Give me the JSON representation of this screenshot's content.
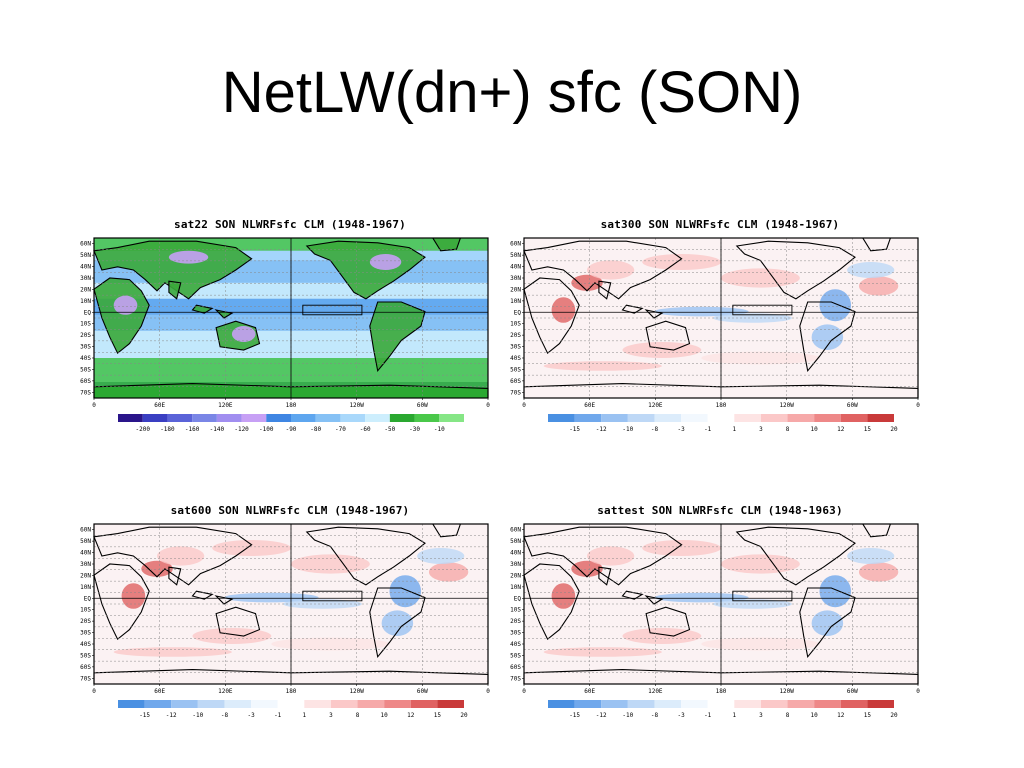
{
  "slide": {
    "title": "NetLW(dn+) sfc (SON)"
  },
  "common": {
    "lat_labels": [
      "60N",
      "50N",
      "40N",
      "30N",
      "20N",
      "10N",
      "EQ",
      "10S",
      "20S",
      "30S",
      "40S",
      "50S",
      "60S",
      "70S"
    ],
    "lon_labels": [
      "0",
      "60E",
      "120E",
      "180",
      "120W",
      "60W",
      "0"
    ]
  },
  "panels": [
    {
      "title": "sat22 SON NLWRFsfc CLM (1948-1967)",
      "palette": [
        "#2a158a",
        "#3a3fc2",
        "#5a63d8",
        "#7a86e6",
        "#a18ef0",
        "#c7a0f5",
        "#3f86e3",
        "#5ea6ef",
        "#86c1f5",
        "#a9d8fb",
        "#cdeefd",
        "#2aa830",
        "#4ac84a",
        "#86e686"
      ],
      "colorbar_labels": [
        "-200",
        "-180",
        "-160",
        "-140",
        "-120",
        "-100",
        "-90",
        "-80",
        "-70",
        "-60",
        "-50",
        "-30",
        "-10"
      ],
      "colors": {
        "ocean": "#86c1f5",
        "land": "#3aa83a",
        "polar": "#2aa830"
      }
    },
    {
      "title": "sat300 SON NLWRFsfc CLM (1948-1967)",
      "palette": [
        "#4a90e2",
        "#70a8ec",
        "#9ac2f2",
        "#bed8f6",
        "#dcecfb",
        "#f2f8fe",
        "#ffffff",
        "#fde4e4",
        "#fbc8c8",
        "#f6a9a9",
        "#ee8888",
        "#e06262",
        "#c93a3a"
      ],
      "colorbar_labels": [
        "-15",
        "-12",
        "-10",
        "-8",
        "-3",
        "-1",
        "1",
        "3",
        "8",
        "10",
        "12",
        "15",
        "20"
      ],
      "colors": {
        "ocean": "#fbf2f3",
        "land": "#eaf3fc"
      }
    },
    {
      "title": "sat600 SON NLWRFsfc CLM (1948-1967)",
      "palette": [
        "#4a90e2",
        "#70a8ec",
        "#9ac2f2",
        "#bed8f6",
        "#dcecfb",
        "#f2f8fe",
        "#ffffff",
        "#fde4e4",
        "#fbc8c8",
        "#f6a9a9",
        "#ee8888",
        "#e06262",
        "#c93a3a"
      ],
      "colorbar_labels": [
        "-15",
        "-12",
        "-10",
        "-8",
        "-3",
        "-1",
        "1",
        "3",
        "8",
        "10",
        "12",
        "15",
        "20"
      ],
      "colors": {
        "ocean": "#fbf2f3",
        "land": "#eaf3fc"
      }
    },
    {
      "title": "sattest SON NLWRFsfc CLM (1948-1963)",
      "palette": [
        "#4a90e2",
        "#70a8ec",
        "#9ac2f2",
        "#bed8f6",
        "#dcecfb",
        "#f2f8fe",
        "#ffffff",
        "#fde4e4",
        "#fbc8c8",
        "#f6a9a9",
        "#ee8888",
        "#e06262",
        "#c93a3a"
      ],
      "colorbar_labels": [
        "-15",
        "-12",
        "-10",
        "-8",
        "-3",
        "-1",
        "1",
        "3",
        "8",
        "10",
        "12",
        "15",
        "20"
      ],
      "colors": {
        "ocean": "#fbf2f3",
        "land": "#eaf3fc"
      }
    }
  ]
}
